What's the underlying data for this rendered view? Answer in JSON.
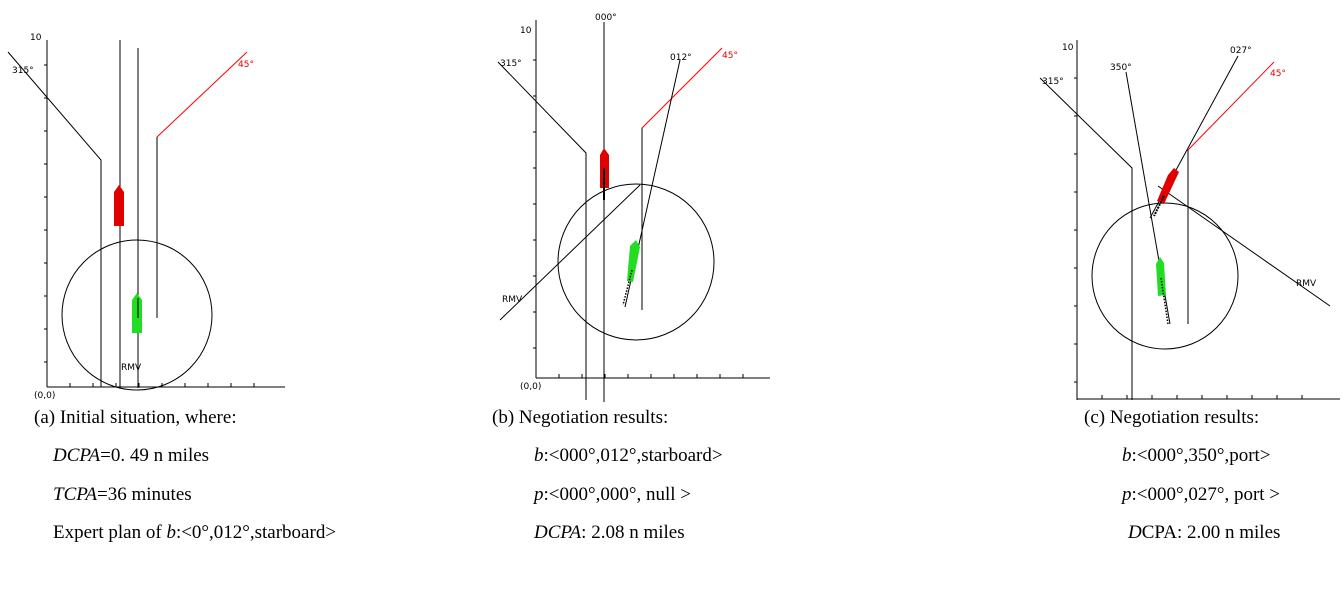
{
  "panels": {
    "a": {
      "axis_top": "10",
      "origin": "(0,0)",
      "label_315": "315°",
      "label_45": "45°",
      "label_rmv": "RMV",
      "caption": "(a) Initial situation, where:",
      "line1_var": "DCPA",
      "line1_rest": "=0. 49 n miles",
      "line2_var": "TCPA",
      "line2_rest": "=36 minutes",
      "line3_pre": "Expert plan of ",
      "line3_var": "b",
      "line3_rest": ":<0°,012°,starboard>"
    },
    "b": {
      "axis_top": "10",
      "origin": "(0,0)",
      "label_315": "315°",
      "label_45": "45°",
      "label_000": "000°",
      "label_012": "012°",
      "label_rmv": "RMV",
      "caption": "(b) Negotiation results:",
      "line1_var": "b",
      "line1_rest": ":<000°,012°,starboard>",
      "line2_var": "p",
      "line2_rest": ":<000°,000°, null >",
      "line3_var": "DCPA",
      "line3_rest": ": 2.08 n miles"
    },
    "c": {
      "axis_top": "10",
      "label_315": "315°",
      "label_45": "45°",
      "label_350": "350°",
      "label_027": "027°",
      "label_rmv": "RMV",
      "caption": "(c) Negotiation results:",
      "line1_var": "b",
      "line1_rest": ":<000°,350°,port>",
      "line2_var": "p",
      "line2_rest": ":<000°,027°, port >",
      "line3_var": "D",
      "line3_rest": "CPA: 2.00 n miles"
    }
  },
  "colors": {
    "red_ship": "#e00000",
    "green_ship": "#22dd22",
    "red_line": "#ff0000",
    "line": "#000000"
  }
}
